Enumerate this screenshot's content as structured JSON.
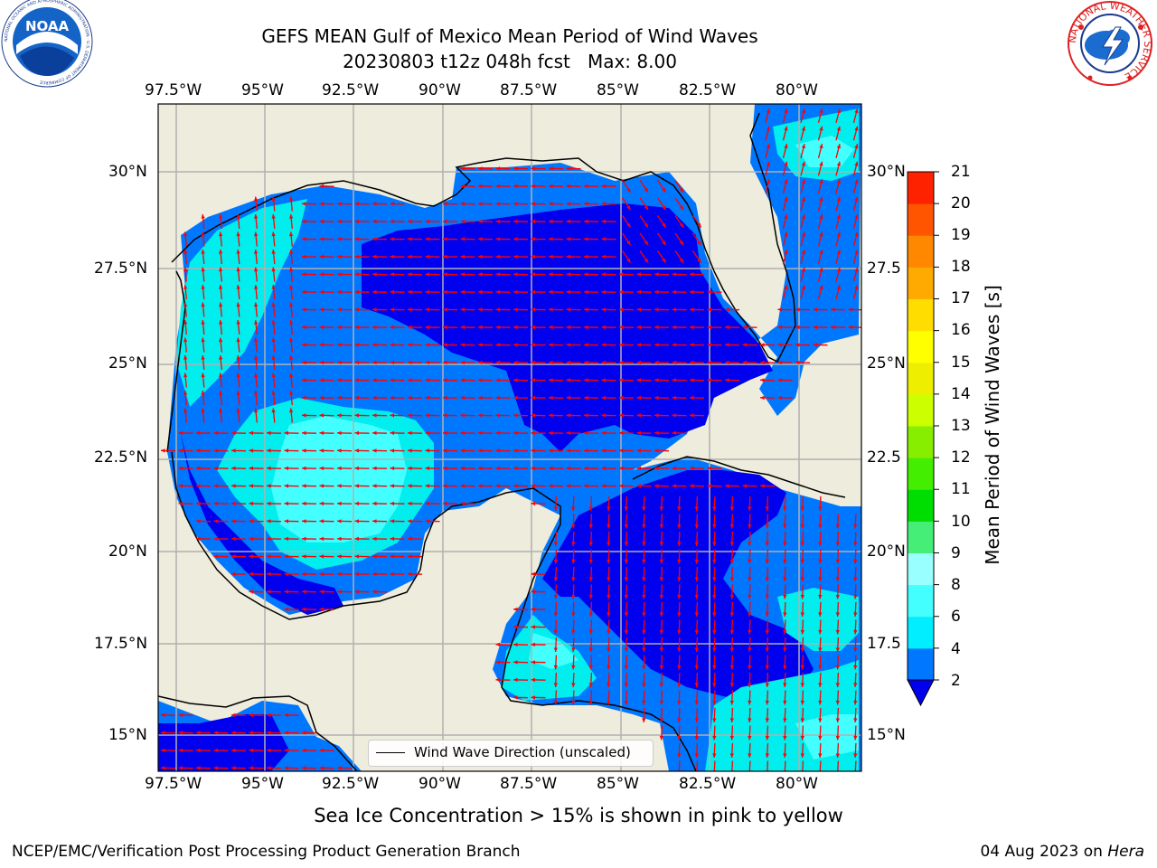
{
  "title": {
    "line1": "GEFS MEAN Gulf of Mexico Mean Period of Wind Waves",
    "line2": "20230803 t12z 048h fcst   Max: 8.00"
  },
  "logos": {
    "left": {
      "name": "noaa-logo",
      "text": "NOAA",
      "ring_text": "NATIONAL OCEANIC AND ATMOSPHERIC ADMINISTRATION · U.S. DEPARTMENT OF COMMERCE"
    },
    "right": {
      "name": "national-weather-service-logo",
      "ring_text": "NATIONAL WEATHER SERVICE"
    }
  },
  "map": {
    "lon_ticks": [
      "97.5°W",
      "95°W",
      "92.5°W",
      "90°W",
      "87.5°W",
      "85°W",
      "82.5°W",
      "80°W"
    ],
    "lat_ticks_left": [
      "30°N",
      "27.5°N",
      "25°N",
      "22.5°N",
      "20°N",
      "17.5°N",
      "15°N"
    ],
    "lat_ticks_right": [
      "30°N",
      "27.5",
      "25°N",
      "22.5",
      "20°N",
      "17.5",
      "15°N"
    ],
    "legend_label": "Wind Wave Direction (unscaled)",
    "colors": {
      "land": "#eeecdc",
      "band_2_4": "#0077ff",
      "band_0_2": "#0000ee",
      "band_4_6": "#00eeee",
      "band_6_8": "#44ffff",
      "arrow": "#ff0000",
      "grid": "#b0b0b0"
    }
  },
  "colorbar": {
    "label": "Mean Period of Wind Waves [s]",
    "ticks": [
      "2",
      "4",
      "6",
      "8",
      "9",
      "10",
      "11",
      "12",
      "13",
      "14",
      "15",
      "16",
      "17",
      "18",
      "19",
      "20",
      "21"
    ],
    "colors": [
      "#0077ff",
      "#00eeff",
      "#44ffff",
      "#99ffff",
      "#44ee77",
      "#00dd00",
      "#44ee00",
      "#88ee00",
      "#ccff00",
      "#eeee00",
      "#ffff00",
      "#ffdd00",
      "#ffaa00",
      "#ff8800",
      "#ff5500",
      "#ff2200"
    ],
    "extend_color": "#0000ee"
  },
  "subtitle": "Sea Ice Concentration > 15% is shown in pink to yellow",
  "footer": {
    "left": "NCEP/EMC/Verification Post Processing Product Generation Branch",
    "right_date": "04 Aug 2023 on ",
    "right_host": "Hera"
  }
}
